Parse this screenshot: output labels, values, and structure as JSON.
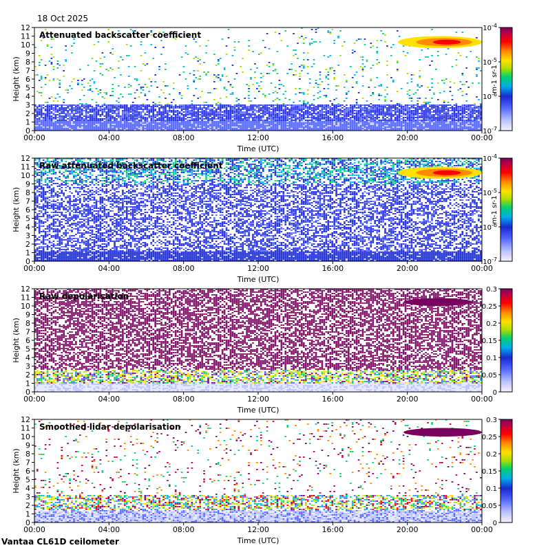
{
  "header": {
    "date": "18 Oct 2025"
  },
  "footer": {
    "instrument": "Vantaa CL61D ceilometer"
  },
  "colors": {
    "scale": [
      "#f2f2ff",
      "#b9c2ff",
      "#5566ff",
      "#1a2ad0",
      "#00aeea",
      "#00d070",
      "#aadd00",
      "#ffe000",
      "#ff8a00",
      "#ff0000",
      "#c00040",
      "#7a0060"
    ]
  },
  "chart_data": [
    {
      "type": "heatmap",
      "title": "Attenuated backscatter coefficient",
      "xlabel": "Time (UTC)",
      "ylabel": "Height (km)",
      "xticks": [
        "00:00",
        "04:00",
        "08:00",
        "12:00",
        "16:00",
        "20:00",
        "00:00"
      ],
      "yticks": [
        "0",
        "1",
        "2",
        "3",
        "4",
        "5",
        "6",
        "7",
        "8",
        "9",
        "10",
        "11",
        "12"
      ],
      "ylim": [
        0,
        12
      ],
      "xlim_hours": [
        0,
        24
      ],
      "colorbar": {
        "scale": "log",
        "ticks": [
          "10-7",
          "10-6",
          "10-5",
          "10-4"
        ],
        "unit": "m-1 sr-1",
        "min": 1e-07,
        "max": 0.0001
      },
      "cloud": {
        "time_start_h": 19.5,
        "time_end_h": 24,
        "height_min_km": 9.6,
        "height_max_km": 11.0
      },
      "dense_layer_top_km": 3.0
    },
    {
      "type": "heatmap",
      "title": "Raw attenuated backscatter coefficient",
      "xlabel": "Time (UTC)",
      "ylabel": "Height (km)",
      "xticks": [
        "00:00",
        "04:00",
        "08:00",
        "12:00",
        "16:00",
        "20:00",
        "00:00"
      ],
      "yticks": [
        "0",
        "1",
        "2",
        "3",
        "4",
        "5",
        "6",
        "7",
        "8",
        "9",
        "10",
        "11",
        "12"
      ],
      "ylim": [
        0,
        12
      ],
      "xlim_hours": [
        0,
        24
      ],
      "colorbar": {
        "scale": "log",
        "ticks": [
          "10-7",
          "10-6",
          "10-5",
          "10-4"
        ],
        "unit": "m-1 sr-1",
        "min": 1e-07,
        "max": 0.0001
      },
      "cloud": {
        "time_start_h": 19.5,
        "time_end_h": 24,
        "height_min_km": 9.6,
        "height_max_km": 11.0
      },
      "dense_layer_top_km": 12.0
    },
    {
      "type": "heatmap",
      "title": "Raw depolarisation",
      "xlabel": "Time (UTC)",
      "ylabel": "Height (km)",
      "xticks": [
        "00:00",
        "04:00",
        "08:00",
        "12:00",
        "16:00",
        "20:00",
        "00:00"
      ],
      "yticks": [
        "0",
        "1",
        "2",
        "3",
        "4",
        "5",
        "6",
        "7",
        "8",
        "9",
        "10",
        "11",
        "12"
      ],
      "ylim": [
        0,
        12
      ],
      "xlim_hours": [
        0,
        24
      ],
      "colorbar": {
        "scale": "linear",
        "ticks": [
          "0",
          "0.05",
          "0.1",
          "0.15",
          "0.2",
          "0.25",
          "0.3"
        ],
        "unit": "",
        "min": 0,
        "max": 0.3
      },
      "cloud": {
        "time_start_h": 19.8,
        "time_end_h": 23.5,
        "height_min_km": 10.0,
        "height_max_km": 10.9
      },
      "dense_layer_top_km": 12.0
    },
    {
      "type": "heatmap",
      "title": "Smoothed lidar depolarisation",
      "xlabel": "Time (UTC)",
      "ylabel": "Height (km)",
      "xticks": [
        "00:00",
        "04:00",
        "08:00",
        "12:00",
        "16:00",
        "20:00",
        "00:00"
      ],
      "yticks": [
        "0",
        "1",
        "2",
        "3",
        "4",
        "5",
        "6",
        "7",
        "8",
        "9",
        "10",
        "11",
        "12"
      ],
      "ylim": [
        0,
        12
      ],
      "xlim_hours": [
        0,
        24
      ],
      "colorbar": {
        "scale": "linear",
        "ticks": [
          "0",
          "0.05",
          "0.1",
          "0.15",
          "0.2",
          "0.25",
          "0.3"
        ],
        "unit": "",
        "min": 0,
        "max": 0.3
      },
      "cloud": {
        "time_start_h": 19.8,
        "time_end_h": 24,
        "height_min_km": 10.0,
        "height_max_km": 11.0
      },
      "dense_layer_top_km": 2.5
    }
  ]
}
